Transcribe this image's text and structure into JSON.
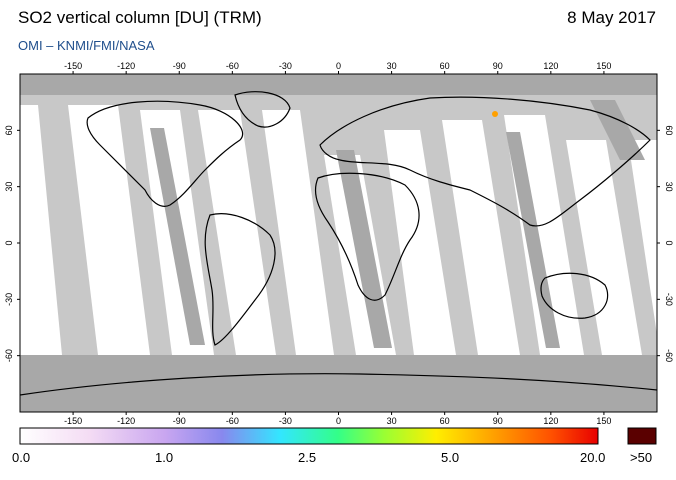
{
  "header": {
    "title": "SO2 vertical column [DU] (TRM)",
    "date": "8 May 2017",
    "credit": "OMI  –  KNMI/FMI/NASA"
  },
  "axes": {
    "top_lon_ticks": [
      "-150",
      "-120",
      "-90",
      "-60",
      "-30",
      "0",
      "30",
      "60",
      "90",
      "120",
      "150"
    ],
    "bottom_lon_ticks": [
      "-150",
      "-120",
      "-90",
      "-60",
      "-30",
      "0",
      "30",
      "60",
      "90",
      "120",
      "150"
    ],
    "lat_ticks": [
      "60",
      "30",
      "0",
      "-30",
      "-60"
    ]
  },
  "colorbar": {
    "labels": [
      "0.0",
      "1.0",
      "2.5",
      "5.0",
      "20.0"
    ],
    "overflow_label": ">50",
    "colors": [
      "#ffffff",
      "#f4dcf4",
      "#c9a6f0",
      "#8888ee",
      "#33e6ff",
      "#33ff88",
      "#99ff33",
      "#ffee00",
      "#ffa000",
      "#ff5000",
      "#e80000"
    ],
    "overflow_color": "#5a0000"
  },
  "colors": {
    "missing_gray": "#c8c8c8",
    "dark_gray": "#a8a8a8",
    "frame": "#000000",
    "credit_blue": "#1f4e8c"
  }
}
